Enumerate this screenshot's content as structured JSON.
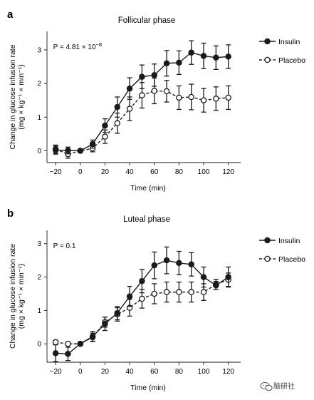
{
  "chart_data": [
    {
      "panel": "a",
      "type": "line",
      "title": "Follicular phase",
      "annotation": "P = 4.81 × 10",
      "annotation_exp": "−8",
      "xlabel": "Time (min)",
      "ylabel_line1": "Change in glucose infusion rate",
      "ylabel_line2": "(mg × kg⁻¹ × min⁻¹)",
      "xlim": [
        -27,
        130
      ],
      "ylim": [
        -0.35,
        3.55
      ],
      "xticks": [
        -20,
        0,
        20,
        40,
        60,
        80,
        100,
        120
      ],
      "xtick_labels": [
        "−20",
        "0",
        "20",
        "40",
        "60",
        "80",
        "100",
        "120"
      ],
      "yticks": [
        0,
        1,
        2,
        3
      ],
      "legend_position": "right",
      "series": [
        {
          "name": "Insulin",
          "style": "solid-filled",
          "x": [
            -20,
            -10,
            0,
            10,
            20,
            30,
            40,
            50,
            60,
            70,
            80,
            90,
            100,
            110,
            120
          ],
          "y": [
            0.02,
            0.01,
            0.0,
            0.2,
            0.75,
            1.3,
            1.85,
            2.2,
            2.25,
            2.6,
            2.62,
            2.92,
            2.82,
            2.77,
            2.8
          ],
          "err": [
            0.12,
            0.1,
            0.05,
            0.12,
            0.2,
            0.3,
            0.32,
            0.35,
            0.33,
            0.38,
            0.35,
            0.35,
            0.38,
            0.35,
            0.35
          ]
        },
        {
          "name": "Placebo",
          "style": "dashed-open",
          "x": [
            -20,
            -10,
            0,
            10,
            20,
            30,
            40,
            50,
            60,
            70,
            80,
            90,
            100,
            110,
            120
          ],
          "y": [
            0.05,
            -0.1,
            0.0,
            0.07,
            0.42,
            0.82,
            1.25,
            1.65,
            1.78,
            1.77,
            1.58,
            1.6,
            1.5,
            1.55,
            1.58
          ],
          "err": [
            0.12,
            0.12,
            0.05,
            0.1,
            0.2,
            0.3,
            0.35,
            0.38,
            0.38,
            0.32,
            0.35,
            0.38,
            0.35,
            0.35,
            0.35
          ]
        }
      ]
    },
    {
      "panel": "b",
      "type": "line",
      "title": "Luteal phase",
      "annotation": "P = 0.1",
      "annotation_exp": "",
      "xlabel": "Time (min)",
      "ylabel_line1": "Change in glucose infusion rate",
      "ylabel_line2": "(mg × kg⁻¹ × min⁻¹)",
      "xlim": [
        -27,
        130
      ],
      "ylim": [
        -0.55,
        3.4
      ],
      "xticks": [
        -20,
        0,
        20,
        40,
        60,
        80,
        100,
        120
      ],
      "xtick_labels": [
        "−20",
        "0",
        "20",
        "40",
        "60",
        "80",
        "100",
        "120"
      ],
      "yticks": [
        0,
        1,
        2,
        3
      ],
      "legend_position": "right",
      "series": [
        {
          "name": "Insulin",
          "style": "solid-filled",
          "x": [
            -20,
            -10,
            0,
            10,
            20,
            30,
            40,
            50,
            60,
            70,
            80,
            90,
            100,
            110,
            120
          ],
          "y": [
            -0.28,
            -0.3,
            0.0,
            0.22,
            0.6,
            0.92,
            1.42,
            1.88,
            2.35,
            2.5,
            2.42,
            2.38,
            2.0,
            1.75,
            2.0
          ],
          "err": [
            0.25,
            0.2,
            0.05,
            0.15,
            0.2,
            0.2,
            0.3,
            0.35,
            0.4,
            0.4,
            0.35,
            0.35,
            0.3,
            0.12,
            0.3
          ]
        },
        {
          "name": "Placebo",
          "style": "dashed-open",
          "x": [
            -20,
            -10,
            0,
            10,
            20,
            30,
            40,
            50,
            60,
            70,
            80,
            90,
            100,
            110,
            120
          ],
          "y": [
            0.05,
            0.0,
            0.0,
            0.2,
            0.65,
            0.88,
            1.08,
            1.35,
            1.5,
            1.55,
            1.55,
            1.55,
            1.55,
            1.78,
            1.92
          ],
          "err": [
            0.05,
            0.05,
            0.05,
            0.12,
            0.15,
            0.2,
            0.25,
            0.28,
            0.3,
            0.3,
            0.3,
            0.3,
            0.25,
            0.15,
            0.2
          ]
        }
      ]
    }
  ],
  "watermark": {
    "icon": "wechat-logo-icon",
    "text": "脑研社"
  }
}
